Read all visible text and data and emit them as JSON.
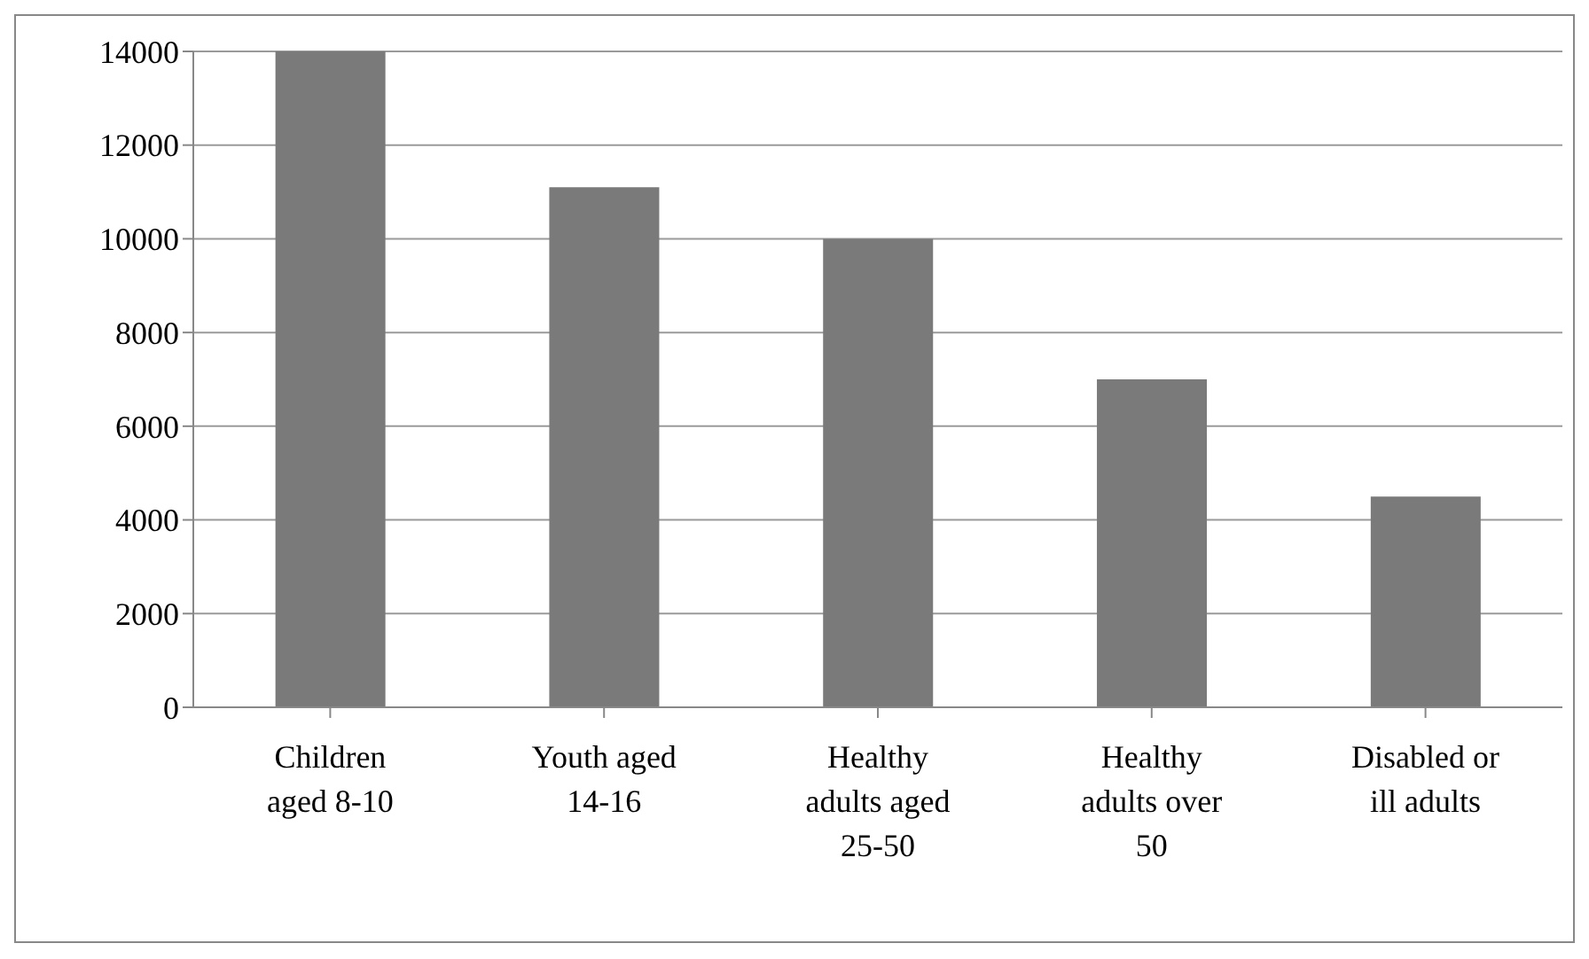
{
  "chart_data": {
    "type": "bar",
    "categories": [
      "Children aged 8-10",
      "Youth aged 14-16",
      "Healthy adults aged 25-50",
      "Healthy adults over 50",
      "Disabled or ill adults"
    ],
    "values": [
      14000,
      11100,
      10000,
      7000,
      4500
    ],
    "color": "#7a7a7a",
    "ylim": [
      0,
      14000
    ],
    "yticks": [
      0,
      2000,
      4000,
      6000,
      8000,
      10000,
      12000,
      14000
    ],
    "grid": "y"
  }
}
